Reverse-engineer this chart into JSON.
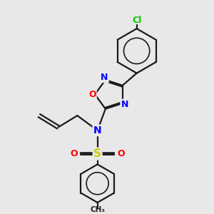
{
  "background_color": "#e8e8e8",
  "bond_color": "#1a1a1a",
  "N_color": "#0000ff",
  "O_color": "#ff0000",
  "S_color": "#cccc00",
  "Cl_color": "#00cc00",
  "line_width": 1.6,
  "figsize": [
    3.0,
    3.0
  ],
  "dpi": 100,
  "xlim": [
    0,
    10
  ],
  "ylim": [
    0,
    10
  ]
}
